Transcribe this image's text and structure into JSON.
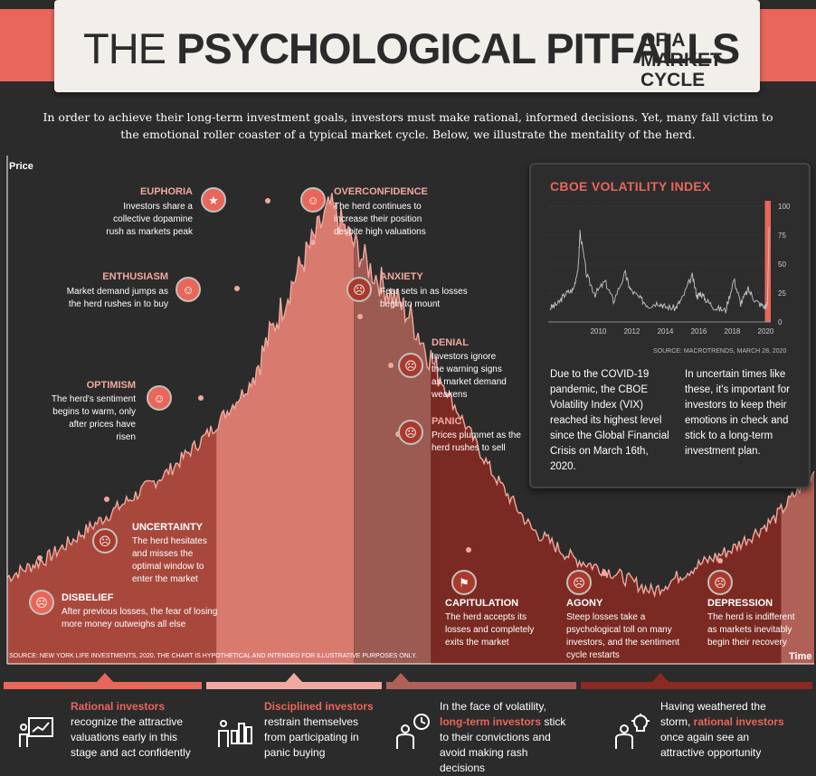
{
  "header": {
    "title_pre": "THE ",
    "title_main": "PSYCHOLOGICAL PITFALLS",
    "title_sub": "OF A MARKET CYCLE",
    "intro": "In order to achieve their long-term investment goals, investors must make rational, informed decisions. Yet, many fall victim to the emotional roller coaster of a typical market cycle. Below, we illustrate the mentality of the herd."
  },
  "axes": {
    "y_label": "Price",
    "x_label": "Time"
  },
  "stages": [
    {
      "id": "disbelief",
      "title": "DISBELIEF",
      "desc": "After previous losses, the fear of losing more money outweighs all else",
      "icon": "sad-face-icon"
    },
    {
      "id": "uncertainty",
      "title": "UNCERTAINTY",
      "desc": "The herd hesitates and misses the optimal window to enter the market",
      "icon": "worried-face-icon"
    },
    {
      "id": "optimism",
      "title": "OPTIMISM",
      "desc": "The herd's sentiment begins to warm, only after prices have risen",
      "icon": "smile-face-icon"
    },
    {
      "id": "enthusiasm",
      "title": "ENTHUSIASM",
      "desc": "Market demand jumps as the herd rushes in to buy",
      "icon": "grin-face-icon"
    },
    {
      "id": "euphoria",
      "title": "EUPHORIA",
      "desc": "Investors share a collective dopamine rush as markets peak",
      "icon": "starry-eyes-face-icon"
    },
    {
      "id": "overconfidence",
      "title": "OVERCONFIDENCE",
      "desc": "The herd continues to increase their position despite high valuations",
      "icon": "sunglasses-face-icon"
    },
    {
      "id": "anxiety",
      "title": "ANXIETY",
      "desc": "Fear sets in as losses begin to mount",
      "icon": "anxious-face-icon"
    },
    {
      "id": "denial",
      "title": "DENIAL",
      "desc": "Investors ignore the warning signs as market demand weakens",
      "icon": "frown-face-icon"
    },
    {
      "id": "panic",
      "title": "PANIC",
      "desc": "Prices plummet as the herd rushes to sell",
      "icon": "shocked-face-icon"
    },
    {
      "id": "capitulation",
      "title": "CAPITULATION",
      "desc": "The herd accepts its losses and completely exits the market",
      "icon": "white-flag-icon"
    },
    {
      "id": "agony",
      "title": "AGONY",
      "desc": "Steep losses take a psychological toll on many investors, and the sentiment cycle restarts",
      "icon": "crying-face-icon"
    },
    {
      "id": "depression",
      "title": "DEPRESSION",
      "desc": "The herd is indifferent as markets inevitably begin their recovery",
      "icon": "sad-face-icon"
    }
  ],
  "chart_data": [
    {
      "type": "line",
      "title": "",
      "xlabel": "Time",
      "ylabel": "Price",
      "note": "Hypothetical price path (illustrative, no numeric axis)",
      "x": [
        0,
        5,
        10,
        15,
        20,
        25,
        30,
        35,
        40,
        45,
        50,
        55,
        60,
        65,
        70,
        75,
        80,
        85,
        90,
        95,
        100
      ],
      "values": [
        18,
        22,
        28,
        34,
        40,
        48,
        58,
        78,
        95,
        82,
        72,
        55,
        40,
        28,
        22,
        19,
        15,
        20,
        24,
        30,
        40
      ],
      "color": "#f0a99f"
    },
    {
      "type": "line",
      "title": "CBOE VOLATILITY INDEX",
      "xlabel": "",
      "ylabel": "",
      "x_ticks": [
        "2010",
        "2012",
        "2014",
        "2016",
        "2018",
        "2020"
      ],
      "y_ticks": [
        "0",
        "25",
        "50",
        "75",
        "100"
      ],
      "ylim": [
        0,
        100
      ],
      "x": [
        2007.1,
        2007.6,
        2008.0,
        2008.5,
        2008.8,
        2008.9,
        2009.3,
        2009.8,
        2010.4,
        2010.9,
        2011.6,
        2011.9,
        2012.5,
        2013.0,
        2013.6,
        2014.0,
        2014.6,
        2015.0,
        2015.6,
        2015.9,
        2016.1,
        2016.5,
        2017.0,
        2017.6,
        2018.1,
        2018.5,
        2018.95,
        2019.4,
        2019.9,
        2020.1,
        2020.2
      ],
      "values": [
        12,
        16,
        24,
        28,
        48,
        78,
        40,
        24,
        35,
        18,
        42,
        28,
        20,
        14,
        17,
        13,
        12,
        20,
        40,
        22,
        25,
        18,
        12,
        10,
        37,
        16,
        28,
        18,
        13,
        15,
        82
      ],
      "color": "#c4c4c4",
      "highlight_color": "#e8675a"
    }
  ],
  "vix": {
    "title": "CBOE VOLATILITY INDEX",
    "source": "SOURCE: MACROTRENDS, MARCH 28, 2020",
    "text_left": "Due to the COVID-19 pandemic, the CBOE Volatility Index (VIX) reached its highest level since the Global Financial Crisis on March 16th, 2020.",
    "text_right": "In uncertain times like these, it's important for investors to keep their emotions in check and stick to a long-term investment plan."
  },
  "footnote": "SOURCE: NEW YORK LIFE INVESTMENTS, 2020. THE CHART IS HYPOTHETICAL AND INTENDED FOR ILLUSTRATIVE PURPOSES ONLY.",
  "bottom": [
    {
      "pre": "",
      "highlight": "Rational investors",
      "post": " recognize the attractive valuations early in this stage and act confidently",
      "icon": "presentation-chart-icon",
      "band_color": "#e8675a"
    },
    {
      "pre": "",
      "highlight": "Disciplined investors",
      "post": " restrain themselves from participating in panic buying",
      "icon": "bar-chart-person-icon",
      "band_color": "#f0a99f"
    },
    {
      "pre": "In the face of volatility, ",
      "highlight": "long-term investors",
      "post": " stick to their convictions and avoid making rash decisions",
      "icon": "clock-person-icon",
      "band_color": "#b06157"
    },
    {
      "pre": "Having weathered the storm, ",
      "highlight": "rational investors",
      "post": " once again see an attractive opportunity",
      "icon": "lightbulb-person-icon",
      "band_color": "#8a2a22"
    }
  ]
}
